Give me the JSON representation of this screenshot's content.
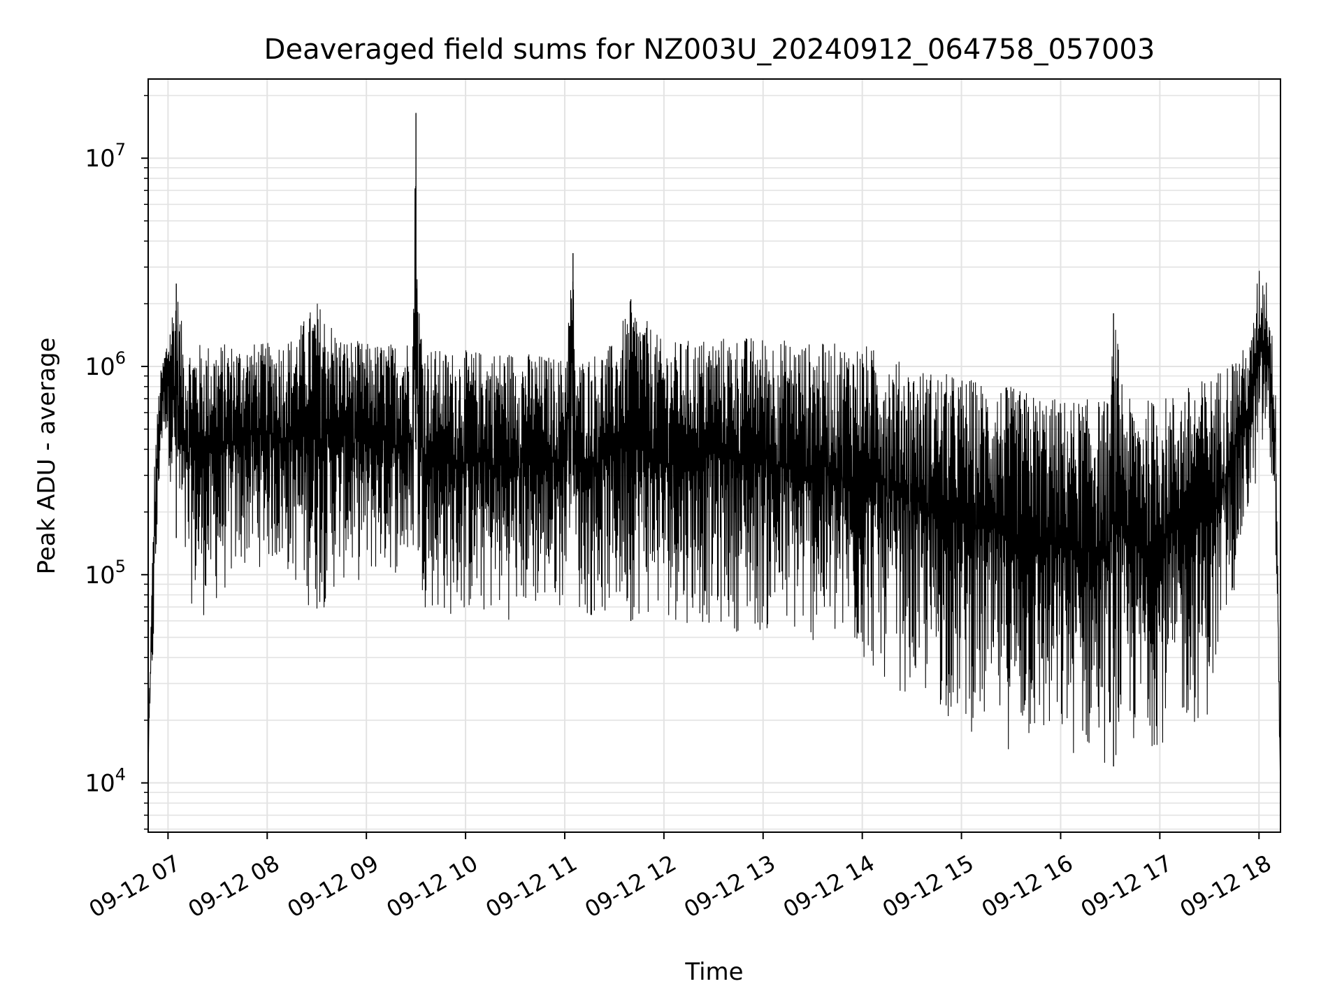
{
  "chart_data": {
    "type": "line",
    "title": "Deaveraged field sums for NZ003U_20240912_064758_057003",
    "xlabel": "Time",
    "ylabel": "Peak ADU - average",
    "yscale": "log",
    "xlim": [
      "2024-09-12 06:48",
      "2024-09-12 18:13"
    ],
    "ylim": [
      5800,
      24000000
    ],
    "grid": true,
    "grid_color": "#e3e3e3",
    "line_color": "#000000",
    "x_ticks": [
      "2024-09-12 07:00",
      "2024-09-12 08:00",
      "2024-09-12 09:00",
      "2024-09-12 10:00",
      "2024-09-12 11:00",
      "2024-09-12 12:00",
      "2024-09-12 13:00",
      "2024-09-12 14:00",
      "2024-09-12 15:00",
      "2024-09-12 16:00",
      "2024-09-12 17:00",
      "2024-09-12 18:00"
    ],
    "x_tick_labels": [
      "09-12 07",
      "09-12 08",
      "09-12 09",
      "09-12 10",
      "09-12 11",
      "09-12 12",
      "09-12 13",
      "09-12 14",
      "09-12 15",
      "09-12 16",
      "09-12 17",
      "09-12 18"
    ],
    "y_ticks": [
      10000,
      100000,
      1000000,
      10000000
    ],
    "y_tick_labels": [
      [
        "10",
        "4"
      ],
      [
        "10",
        "5"
      ],
      [
        "10",
        "6"
      ],
      [
        "10",
        "7"
      ]
    ],
    "series": [
      {
        "x": [
          "2024-09-12 06:48",
          "2024-09-12 06:52",
          "2024-09-12 06:55",
          "2024-09-12 06:58",
          "2024-09-12 07:05",
          "2024-09-12 07:10",
          "2024-09-12 07:20",
          "2024-09-12 07:30",
          "2024-09-12 07:45",
          "2024-09-12 08:00",
          "2024-09-12 08:15",
          "2024-09-12 08:30",
          "2024-09-12 08:45",
          "2024-09-12 09:00",
          "2024-09-12 09:15",
          "2024-09-12 09:28",
          "2024-09-12 09:30",
          "2024-09-12 09:31",
          "2024-09-12 09:35",
          "2024-09-12 09:45",
          "2024-09-12 10:00",
          "2024-09-12 10:30",
          "2024-09-12 11:00",
          "2024-09-12 11:05",
          "2024-09-12 11:06",
          "2024-09-12 11:10",
          "2024-09-12 11:30",
          "2024-09-12 11:40",
          "2024-09-12 12:00",
          "2024-09-12 12:30",
          "2024-09-12 13:00",
          "2024-09-12 13:30",
          "2024-09-12 14:00",
          "2024-09-12 14:30",
          "2024-09-12 15:00",
          "2024-09-12 15:30",
          "2024-09-12 16:00",
          "2024-09-12 16:30",
          "2024-09-12 16:32",
          "2024-09-12 16:40",
          "2024-09-12 17:00",
          "2024-09-12 17:30",
          "2024-09-12 17:55",
          "2024-09-12 18:00",
          "2024-09-12 18:05",
          "2024-09-12 18:10",
          "2024-09-12 18:13"
        ],
        "high": [
          15000,
          400000,
          900000,
          1200000,
          2500000,
          1300000,
          1300000,
          1300000,
          1300000,
          1300000,
          1400000,
          2100000,
          1400000,
          1300000,
          1300000,
          1400000,
          16500000,
          2400000,
          1300000,
          1200000,
          1200000,
          1200000,
          1100000,
          3500000,
          1100000,
          1100000,
          1300000,
          2100000,
          1300000,
          1400000,
          1400000,
          1300000,
          1300000,
          1000000,
          900000,
          800000,
          700000,
          700000,
          1800000,
          700000,
          700000,
          900000,
          1300000,
          3100000,
          2700000,
          900000,
          9000
        ],
        "low": [
          12000,
          50000,
          300000,
          500000,
          150000,
          80000,
          60000,
          70000,
          100000,
          110000,
          90000,
          60000,
          90000,
          90000,
          100000,
          90000,
          400000,
          90000,
          70000,
          60000,
          60000,
          60000,
          70000,
          300000,
          70000,
          60000,
          60000,
          60000,
          60000,
          55000,
          50000,
          45000,
          35000,
          25000,
          18000,
          14000,
          13000,
          12000,
          12000,
          13000,
          15000,
          20000,
          200000,
          300000,
          400000,
          150000,
          9000
        ]
      }
    ]
  }
}
